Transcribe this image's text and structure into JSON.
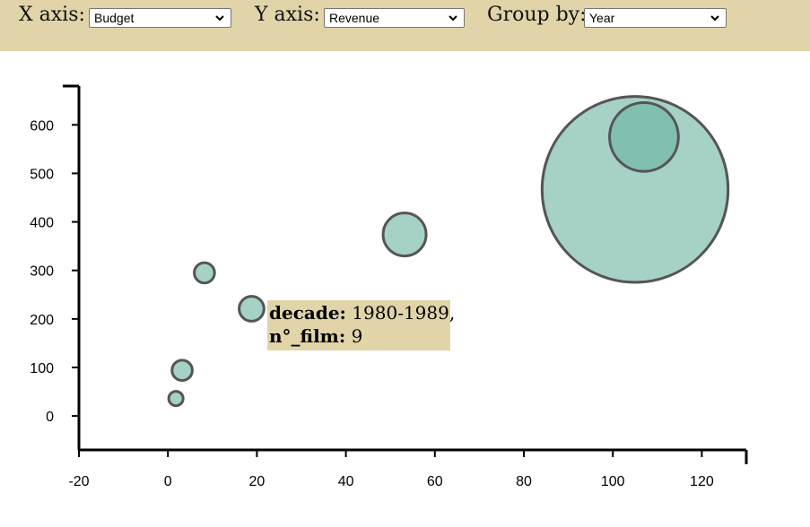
{
  "controls": {
    "x_label": "X axis:",
    "x_value": "Budget",
    "y_label": "Y axis:",
    "y_value": "Revenue",
    "group_label": "Group by:",
    "group_value": "Year"
  },
  "colors": {
    "header_bg": "#e0d4a8",
    "bubble_fill": "#69b3a2",
    "bubble_stroke": "#555555",
    "tooltip_bg": "#e0d4a8"
  },
  "tooltip": {
    "key1": "decade:",
    "val1": "1980-1989,",
    "key2": "n°_film:",
    "val2": "9"
  },
  "chart_data": {
    "type": "scatter",
    "bubble": true,
    "title": "",
    "xlabel": "",
    "ylabel": "",
    "xlim": [
      -20,
      130
    ],
    "ylim": [
      -70,
      680
    ],
    "xticks": [
      -20,
      0,
      20,
      40,
      60,
      80,
      100,
      120
    ],
    "yticks": [
      0,
      100,
      200,
      300,
      400,
      500,
      600
    ],
    "grid": false,
    "points": [
      {
        "x": 1.8,
        "y": 36,
        "size": 1
      },
      {
        "x": 3.2,
        "y": 94,
        "size": 2
      },
      {
        "x": 8.2,
        "y": 295,
        "size": 2
      },
      {
        "x": 18.8,
        "y": 221,
        "size": 3
      },
      {
        "x": 53.2,
        "y": 374,
        "size": 9
      },
      {
        "x": 107,
        "y": 575,
        "size": 23
      },
      {
        "x": 105,
        "y": 467,
        "size": 168
      }
    ]
  }
}
